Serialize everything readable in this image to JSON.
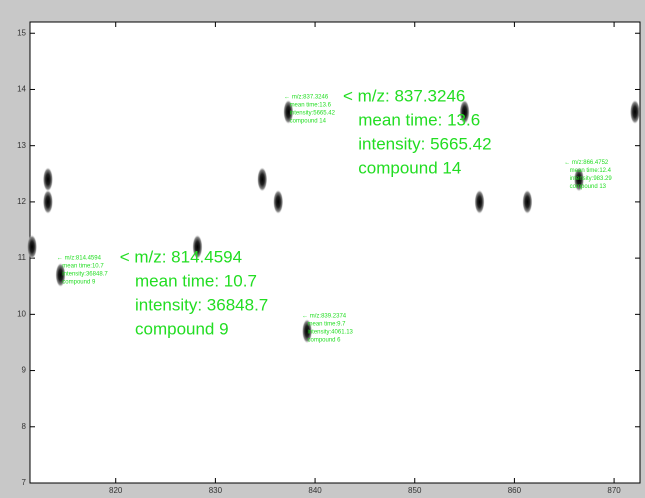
{
  "chart_data": {
    "type": "scatter",
    "x": [
      811.6,
      813.2,
      813.2,
      814.46,
      828.2,
      834.7,
      836.3,
      837.32,
      839.2,
      855.0,
      856.5,
      861.3,
      866.48,
      872.1
    ],
    "y": [
      11.2,
      12.4,
      12.0,
      10.7,
      11.2,
      12.4,
      12.0,
      13.6,
      9.7,
      13.6,
      12.0,
      12.0,
      12.4,
      13.6
    ],
    "xlim": [
      811.4,
      872.6
    ],
    "ylim": [
      7,
      15.2
    ],
    "xticks": [
      820,
      830,
      840,
      850,
      860,
      870
    ],
    "yticks": [
      7,
      8,
      9,
      10,
      11,
      12,
      13,
      14,
      15
    ],
    "annotation_color": "#22dd22",
    "annotations": [
      {
        "x": 836.9,
        "y": 13.87,
        "lines": [
          "← m/z:837.3246",
          "mean time:13.6",
          "intensity:5665.42",
          "compound 14"
        ]
      },
      {
        "x": 814.1,
        "y": 11.0,
        "lines": [
          "← m/z:814.4594",
          "mean time:10.7",
          "intensity:36848.7",
          "compound 9"
        ]
      },
      {
        "x": 838.7,
        "y": 9.97,
        "lines": [
          "← m/z:839.2374",
          "mean time:9.7",
          "intensity:4061.13",
          "compound 6"
        ]
      },
      {
        "x": 865.0,
        "y": 12.7,
        "lines": [
          "← m/z:866.4752",
          "mean time:12.4",
          "intensity:983.29",
          "compound 13"
        ]
      }
    ],
    "callouts": [
      {
        "x": 842.8,
        "y": 13.87,
        "lines": [
          "< m/z: 837.3246",
          "mean time: 13.6",
          "intensity: 5665.42",
          "compound 14"
        ]
      },
      {
        "x": 820.4,
        "y": 11.0,
        "lines": [
          "< m/z: 814.4594",
          "mean time: 10.7",
          "intensity: 36848.7",
          "compound 9"
        ]
      }
    ]
  }
}
